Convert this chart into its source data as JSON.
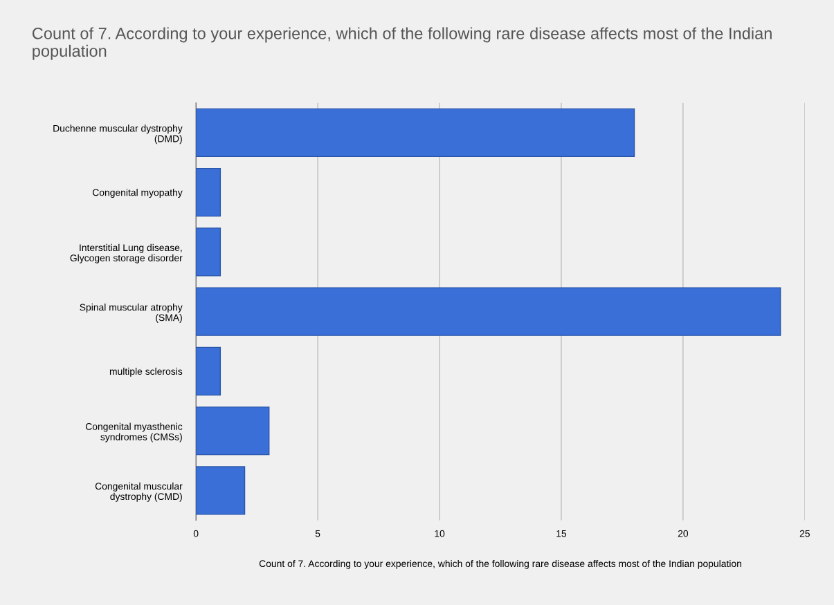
{
  "chart_data": {
    "type": "bar",
    "orientation": "horizontal",
    "title": "Count of 7. According to your experience, which of the following rare disease affects most of the Indian population",
    "xlabel": "Count of 7. According to your experience, which of the following rare disease affects most of the Indian population",
    "categories": [
      "Duchenne muscular dystrophy\n(DMD)",
      "Congenital myopathy",
      "Interstitial Lung disease,\nGlycogen storage disorder",
      "Spinal muscular atrophy\n(SMA)",
      "multiple sclerosis",
      "Congenital myasthenic\nsyndromes (CMSs)",
      "Congenital muscular\ndystrophy (CMD)"
    ],
    "values": [
      18,
      1,
      1,
      24,
      1,
      3,
      2
    ],
    "color": "#3a6fd8",
    "xlim": [
      0,
      25
    ],
    "xticks": [
      0,
      5,
      10,
      15,
      20,
      25
    ],
    "grid": "x",
    "legend": false
  }
}
